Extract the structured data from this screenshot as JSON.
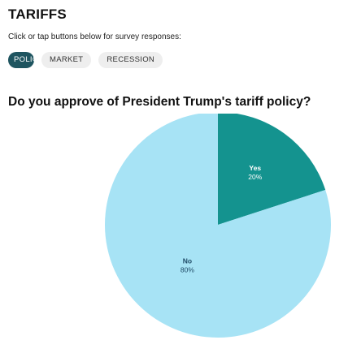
{
  "header": {
    "title": "TARIFFS",
    "subtitle": "Click or tap buttons below for survey responses:"
  },
  "buttons": [
    {
      "label": "POLICY",
      "active": true
    },
    {
      "label": "MARKET",
      "active": false
    },
    {
      "label": "RECESSION",
      "active": false
    }
  ],
  "question": "Do you approve of President Trump's tariff policy?",
  "colors": {
    "yes": "#14938f",
    "no": "#a7e3f5",
    "active_button": "#1f5560",
    "inactive_button": "#eeeeee"
  },
  "chart_data": {
    "type": "pie",
    "title": "Do you approve of President Trump's tariff policy?",
    "donut": true,
    "slices": [
      {
        "label": "Yes",
        "value": 20,
        "display": "20%",
        "color": "#14938f"
      },
      {
        "label": "No",
        "value": 80,
        "display": "80%",
        "color": "#a7e3f5"
      }
    ]
  }
}
